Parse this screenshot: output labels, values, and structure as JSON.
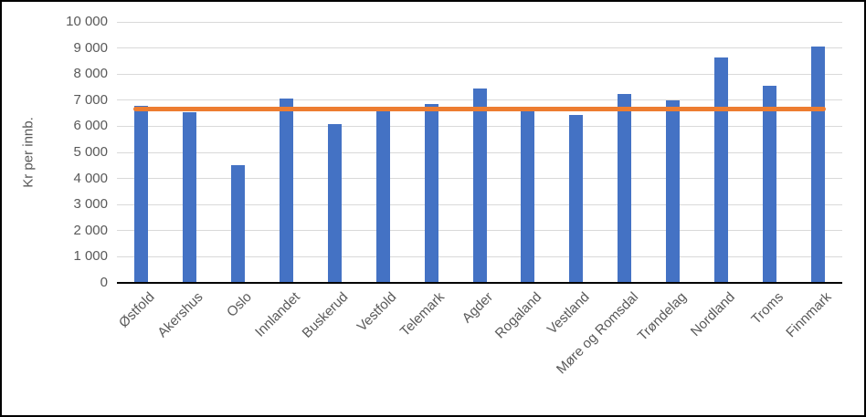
{
  "chart_data": {
    "type": "bar",
    "title": "",
    "xlabel": "",
    "ylabel": "Kr per innb.",
    "categories": [
      "Østfold",
      "Akershus",
      "Oslo",
      "Innlandet",
      "Buskerud",
      "Vestfold",
      "Telemark",
      "Agder",
      "Rogaland",
      "Vestland",
      "Møre og Romsdal",
      "Trøndelag",
      "Nordland",
      "Troms",
      "Finnmark"
    ],
    "values": [
      6800,
      6550,
      4500,
      7050,
      6100,
      6750,
      6850,
      7450,
      6750,
      6450,
      7250,
      7000,
      8650,
      7550,
      9050
    ],
    "reference_line": {
      "name": "average-line",
      "value": 6650,
      "color": "#ED7D31"
    },
    "ylim": [
      0,
      10000
    ],
    "ytick_step": 1000,
    "ytick_labels": [
      "0",
      "1 000",
      "2 000",
      "3 000",
      "4 000",
      "5 000",
      "6 000",
      "7 000",
      "8 000",
      "9 000",
      "10 000"
    ],
    "grid": true,
    "legend_position": "none",
    "bar_color": "#4472C4",
    "gridline_color": "#D9D9D9",
    "axis_line_color": "#000000",
    "axis_text_color": "#595959"
  }
}
